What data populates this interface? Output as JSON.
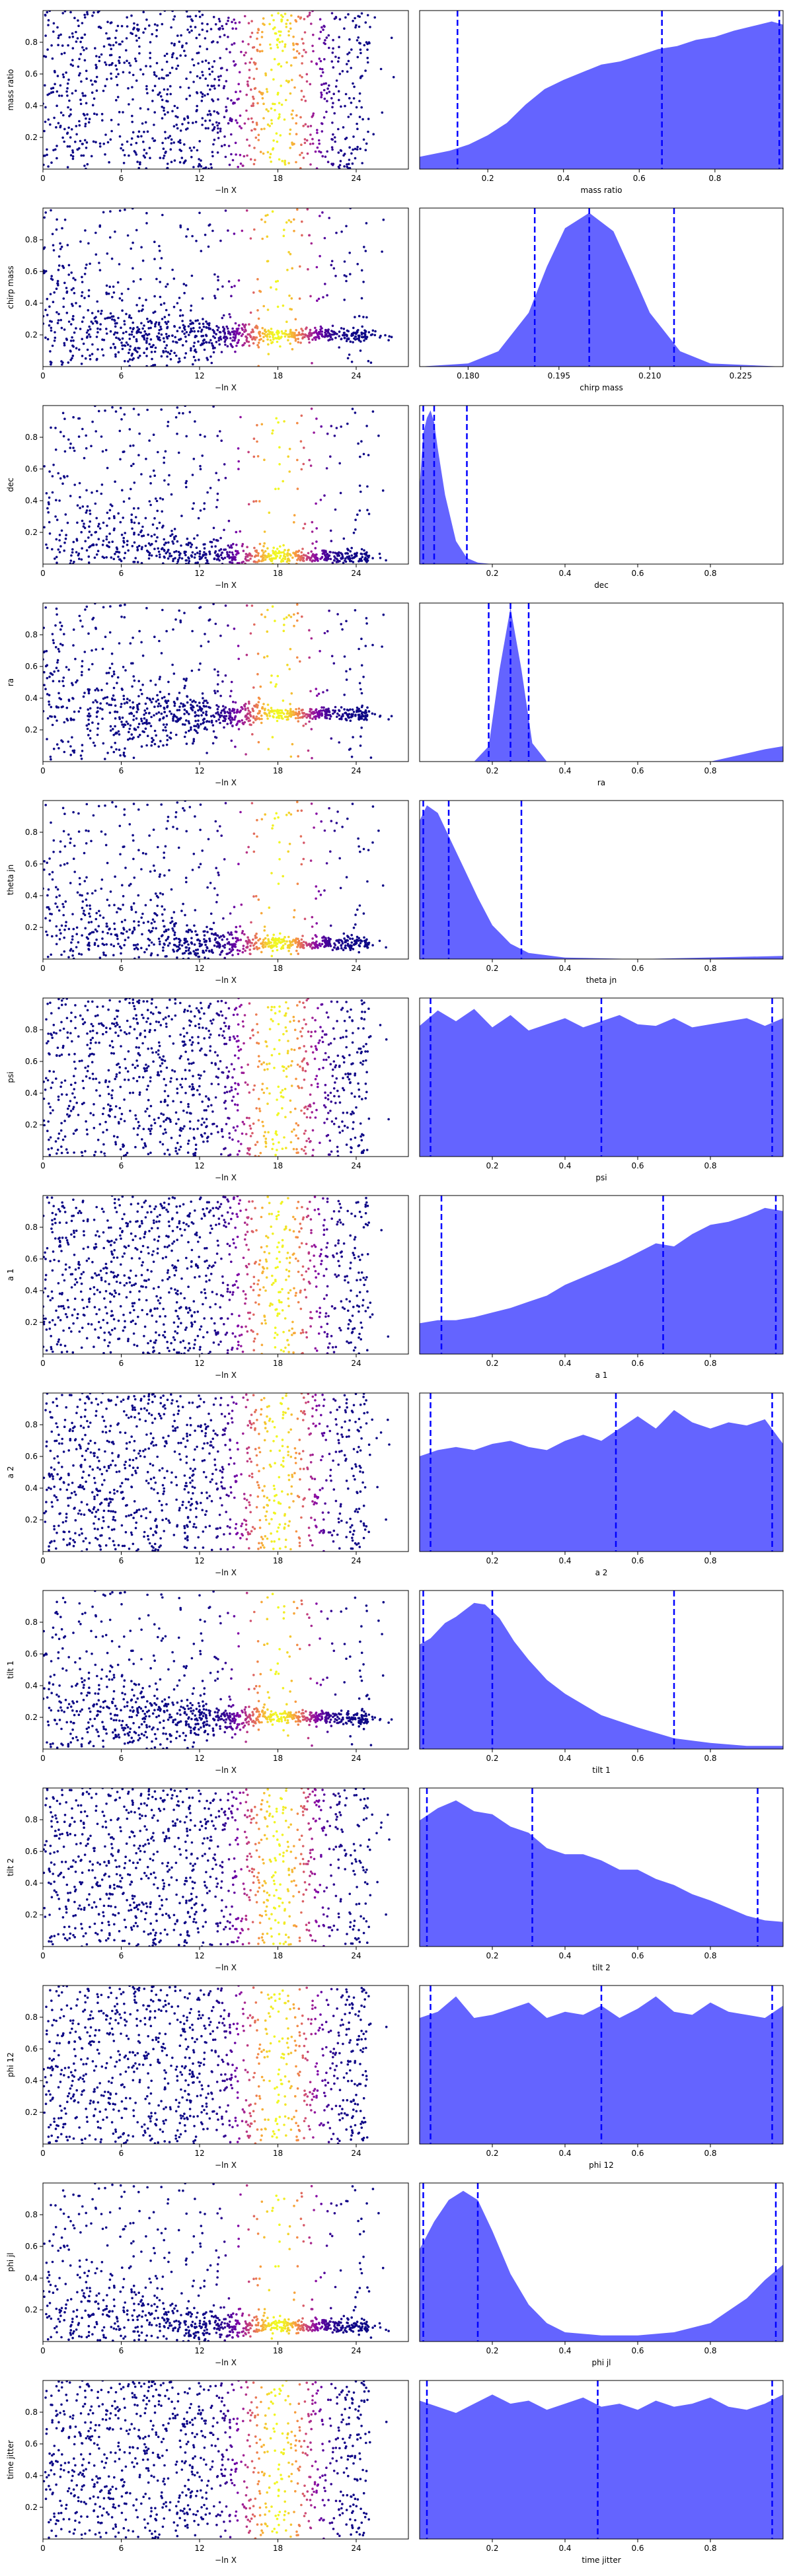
{
  "figure": {
    "panel_columns": [
      "scatter of parameter vs -ln X (colored by weight)",
      "marginal posterior density"
    ],
    "scatter_xlabel": "−ln X",
    "scatter_xlim": [
      0,
      28
    ],
    "scatter_ylim": [
      0,
      1
    ],
    "scatter_xticks": [
      0,
      6,
      12,
      18,
      24
    ],
    "colormap": [
      "#0d0887",
      "#7e03a8",
      "#cc4778",
      "#f89540",
      "#f0f921"
    ],
    "density_fill": "#6464ff",
    "line_color": "#0000ff",
    "grid": false
  },
  "chart_data": [
    {
      "type": "scatter+area",
      "param": "mass ratio",
      "ylabel": "mass ratio",
      "xlabel": "mass ratio",
      "scatter_yticks": [
        "0.2",
        "0.4",
        "0.6",
        "0.8"
      ],
      "dens_xlim": [
        0.02,
        0.98
      ],
      "dens_xticks": [
        0.2,
        0.4,
        0.6,
        0.8
      ],
      "dens_xticklabels": [
        "0.2",
        "0.4",
        "0.6",
        "0.8"
      ],
      "quantiles": [
        0.12,
        0.66,
        0.97
      ],
      "density": {
        "x": [
          0.02,
          0.1,
          0.15,
          0.2,
          0.25,
          0.3,
          0.35,
          0.4,
          0.45,
          0.5,
          0.55,
          0.6,
          0.65,
          0.7,
          0.75,
          0.8,
          0.85,
          0.9,
          0.95,
          0.98
        ],
        "y": [
          0.08,
          0.12,
          0.16,
          0.22,
          0.3,
          0.42,
          0.52,
          0.58,
          0.63,
          0.68,
          0.7,
          0.74,
          0.78,
          0.8,
          0.84,
          0.86,
          0.9,
          0.93,
          0.96,
          0.94
        ]
      },
      "scatter": {
        "ymin": 0.0,
        "ymax": 1.0,
        "xend": 25,
        "yfocus": null
      }
    },
    {
      "type": "scatter+area",
      "param": "chirp mass",
      "ylabel": "chirp mass",
      "xlabel": "chirp mass",
      "scatter_yticks": [
        "0.2",
        "0.4",
        "0.6",
        "0.8"
      ],
      "dens_xlim": [
        0.172,
        0.232
      ],
      "dens_xticks": [
        0.18,
        0.195,
        0.21,
        0.225
      ],
      "dens_xticklabels": [
        "0.180",
        "0.195",
        "0.210",
        "0.225"
      ],
      "quantiles": [
        0.191,
        0.2,
        0.214
      ],
      "density": {
        "x": [
          0.172,
          0.18,
          0.185,
          0.19,
          0.193,
          0.196,
          0.2,
          0.204,
          0.207,
          0.21,
          0.215,
          0.22,
          0.232
        ],
        "y": [
          0,
          0.02,
          0.1,
          0.35,
          0.65,
          0.9,
          1.0,
          0.88,
          0.62,
          0.35,
          0.1,
          0.02,
          0
        ]
      },
      "scatter": {
        "ymin": 0.0,
        "ymax": 1.0,
        "xend": 25,
        "yfocus": 0.2
      }
    },
    {
      "type": "scatter+area",
      "param": "dec",
      "ylabel": "dec",
      "xlabel": "dec",
      "scatter_yticks": [
        "0.2",
        "0.4",
        "0.6",
        "0.8"
      ],
      "dens_xlim": [
        0.0,
        1.0
      ],
      "dens_xticks": [
        0.2,
        0.4,
        0.6,
        0.8
      ],
      "dens_xticklabels": [
        "0.2",
        "0.4",
        "0.6",
        "0.8"
      ],
      "quantiles": [
        0.01,
        0.04,
        0.13
      ],
      "density": {
        "x": [
          0.0,
          0.01,
          0.02,
          0.03,
          0.04,
          0.05,
          0.07,
          0.1,
          0.13,
          0.16,
          0.2,
          0.4,
          0.6,
          0.8,
          1.0
        ],
        "y": [
          0.5,
          0.85,
          0.95,
          1.0,
          0.92,
          0.75,
          0.45,
          0.15,
          0.04,
          0.01,
          0,
          0,
          0,
          0,
          0
        ]
      },
      "scatter": {
        "ymin": 0.0,
        "ymax": 1.0,
        "xend": 25,
        "yfocus": 0.05
      }
    },
    {
      "type": "scatter+area",
      "param": "ra",
      "ylabel": "ra",
      "xlabel": "ra",
      "scatter_yticks": [
        "0.2",
        "0.4",
        "0.6",
        "0.8"
      ],
      "dens_xlim": [
        0.0,
        1.0
      ],
      "dens_xticks": [
        0.2,
        0.4,
        0.6,
        0.8
      ],
      "dens_xticklabels": [
        "0.2",
        "0.4",
        "0.6",
        "0.8"
      ],
      "quantiles": [
        0.19,
        0.25,
        0.3
      ],
      "density": {
        "x": [
          0.0,
          0.15,
          0.19,
          0.22,
          0.25,
          0.28,
          0.31,
          0.35,
          0.5,
          0.8,
          0.95,
          1.0
        ],
        "y": [
          0,
          0,
          0.1,
          0.6,
          1.0,
          0.6,
          0.12,
          0,
          0,
          0,
          0.08,
          0.1
        ]
      },
      "scatter": {
        "ymin": 0.0,
        "ymax": 1.0,
        "xend": 25,
        "yfocus": 0.3
      }
    },
    {
      "type": "scatter+area",
      "param": "theta jn",
      "ylabel": "theta jn",
      "xlabel": "theta jn",
      "scatter_yticks": [
        "0.2",
        "0.4",
        "0.6",
        "0.8"
      ],
      "dens_xlim": [
        0.0,
        1.0
      ],
      "dens_xticks": [
        0.2,
        0.4,
        0.6,
        0.8
      ],
      "dens_xticklabels": [
        "0.2",
        "0.4",
        "0.6",
        "0.8"
      ],
      "quantiles": [
        0.01,
        0.08,
        0.28
      ],
      "density": {
        "x": [
          0.0,
          0.02,
          0.05,
          0.08,
          0.12,
          0.16,
          0.2,
          0.25,
          0.3,
          0.4,
          0.6,
          1.0
        ],
        "y": [
          0.9,
          1.0,
          0.95,
          0.8,
          0.6,
          0.4,
          0.22,
          0.1,
          0.04,
          0.01,
          0,
          0.02
        ]
      },
      "scatter": {
        "ymin": 0.0,
        "ymax": 1.0,
        "xend": 25,
        "yfocus": 0.1
      }
    },
    {
      "type": "scatter+area",
      "param": "psi",
      "ylabel": "psi",
      "xlabel": "psi",
      "scatter_yticks": [
        "0.2",
        "0.4",
        "0.6",
        "0.8"
      ],
      "dens_xlim": [
        0.0,
        1.0
      ],
      "dens_xticks": [
        0.2,
        0.4,
        0.6,
        0.8
      ],
      "dens_xticklabels": [
        "0.2",
        "0.4",
        "0.6",
        "0.8"
      ],
      "quantiles": [
        0.03,
        0.5,
        0.97
      ],
      "density": {
        "x": [
          0.0,
          0.05,
          0.1,
          0.15,
          0.2,
          0.25,
          0.3,
          0.35,
          0.4,
          0.45,
          0.5,
          0.55,
          0.6,
          0.65,
          0.7,
          0.75,
          0.8,
          0.85,
          0.9,
          0.95,
          1.0
        ],
        "y": [
          0.85,
          0.95,
          0.88,
          0.96,
          0.84,
          0.92,
          0.82,
          0.86,
          0.9,
          0.84,
          0.88,
          0.92,
          0.86,
          0.85,
          0.9,
          0.84,
          0.86,
          0.88,
          0.9,
          0.85,
          0.9
        ]
      },
      "scatter": {
        "ymin": 0.0,
        "ymax": 1.0,
        "xend": 25,
        "yfocus": null
      }
    },
    {
      "type": "scatter+area",
      "param": "a 1",
      "ylabel": "a 1",
      "xlabel": "a 1",
      "scatter_yticks": [
        "0.2",
        "0.4",
        "0.6",
        "0.8"
      ],
      "dens_xlim": [
        0.0,
        1.0
      ],
      "dens_xticks": [
        0.2,
        0.4,
        0.6,
        0.8
      ],
      "dens_xticklabels": [
        "0.2",
        "0.4",
        "0.6",
        "0.8"
      ],
      "quantiles": [
        0.06,
        0.67,
        0.98
      ],
      "density": {
        "x": [
          0.0,
          0.05,
          0.1,
          0.15,
          0.2,
          0.25,
          0.3,
          0.35,
          0.4,
          0.45,
          0.5,
          0.55,
          0.6,
          0.65,
          0.7,
          0.75,
          0.8,
          0.85,
          0.9,
          0.95,
          1.0
        ],
        "y": [
          0.2,
          0.22,
          0.22,
          0.24,
          0.27,
          0.3,
          0.34,
          0.38,
          0.45,
          0.5,
          0.55,
          0.6,
          0.66,
          0.72,
          0.7,
          0.78,
          0.84,
          0.86,
          0.9,
          0.95,
          0.93
        ]
      },
      "scatter": {
        "ymin": 0.0,
        "ymax": 1.0,
        "xend": 25,
        "yfocus": null
      }
    },
    {
      "type": "scatter+area",
      "param": "a 2",
      "ylabel": "a 2",
      "xlabel": "a 2",
      "scatter_yticks": [
        "0.2",
        "0.4",
        "0.6",
        "0.8"
      ],
      "dens_xlim": [
        0.0,
        1.0
      ],
      "dens_xticks": [
        0.2,
        0.4,
        0.6,
        0.8
      ],
      "dens_xticklabels": [
        "0.2",
        "0.4",
        "0.6",
        "0.8"
      ],
      "quantiles": [
        0.03,
        0.54,
        0.97
      ],
      "density": {
        "x": [
          0.0,
          0.05,
          0.1,
          0.15,
          0.2,
          0.25,
          0.3,
          0.35,
          0.4,
          0.45,
          0.5,
          0.55,
          0.6,
          0.65,
          0.7,
          0.75,
          0.8,
          0.85,
          0.9,
          0.95,
          1.0
        ],
        "y": [
          0.62,
          0.66,
          0.68,
          0.66,
          0.7,
          0.72,
          0.68,
          0.66,
          0.72,
          0.76,
          0.72,
          0.8,
          0.88,
          0.8,
          0.92,
          0.84,
          0.8,
          0.84,
          0.82,
          0.86,
          0.7
        ]
      },
      "scatter": {
        "ymin": 0.0,
        "ymax": 1.0,
        "xend": 25,
        "yfocus": null
      }
    },
    {
      "type": "scatter+area",
      "param": "tilt 1",
      "ylabel": "tilt 1",
      "xlabel": "tilt 1",
      "scatter_yticks": [
        "0.2",
        "0.4",
        "0.6",
        "0.8"
      ],
      "dens_xlim": [
        0.0,
        1.0
      ],
      "dens_xticks": [
        0.2,
        0.4,
        0.6,
        0.8
      ],
      "dens_xticklabels": [
        "0.2",
        "0.4",
        "0.6",
        "0.8"
      ],
      "quantiles": [
        0.01,
        0.2,
        0.7
      ],
      "density": {
        "x": [
          0.0,
          0.03,
          0.07,
          0.1,
          0.15,
          0.18,
          0.22,
          0.26,
          0.3,
          0.35,
          0.4,
          0.5,
          0.6,
          0.7,
          0.8,
          0.9,
          1.0
        ],
        "y": [
          0.68,
          0.72,
          0.82,
          0.86,
          0.95,
          0.94,
          0.85,
          0.7,
          0.58,
          0.45,
          0.36,
          0.22,
          0.14,
          0.07,
          0.04,
          0.02,
          0.02
        ]
      },
      "scatter": {
        "ymin": 0.0,
        "ymax": 1.0,
        "xend": 25,
        "yfocus": 0.2
      }
    },
    {
      "type": "scatter+area",
      "param": "tilt 2",
      "ylabel": "tilt 2",
      "xlabel": "tilt 2",
      "scatter_yticks": [
        "0.2",
        "0.4",
        "0.6",
        "0.8"
      ],
      "dens_xlim": [
        0.0,
        1.0
      ],
      "dens_xticks": [
        0.2,
        0.4,
        0.6,
        0.8
      ],
      "dens_xticklabels": [
        "0.2",
        "0.4",
        "0.6",
        "0.8"
      ],
      "quantiles": [
        0.02,
        0.31,
        0.93
      ],
      "density": {
        "x": [
          0.0,
          0.05,
          0.1,
          0.15,
          0.2,
          0.25,
          0.3,
          0.35,
          0.4,
          0.45,
          0.5,
          0.55,
          0.6,
          0.65,
          0.7,
          0.75,
          0.8,
          0.85,
          0.9,
          0.95,
          1.0
        ],
        "y": [
          0.82,
          0.9,
          0.95,
          0.88,
          0.86,
          0.78,
          0.74,
          0.64,
          0.6,
          0.6,
          0.56,
          0.5,
          0.5,
          0.44,
          0.4,
          0.34,
          0.3,
          0.25,
          0.2,
          0.17,
          0.16
        ]
      },
      "scatter": {
        "ymin": 0.0,
        "ymax": 1.0,
        "xend": 25,
        "yfocus": null
      }
    },
    {
      "type": "scatter+area",
      "param": "phi 12",
      "ylabel": "phi 12",
      "xlabel": "phi 12",
      "scatter_yticks": [
        "0.2",
        "0.4",
        "0.6",
        "0.8"
      ],
      "dens_xlim": [
        0.0,
        1.0
      ],
      "dens_xticks": [
        0.2,
        0.4,
        0.6,
        0.8
      ],
      "dens_xticklabels": [
        "0.2",
        "0.4",
        "0.6",
        "0.8"
      ],
      "quantiles": [
        0.03,
        0.5,
        0.97
      ],
      "density": {
        "x": [
          0.0,
          0.05,
          0.1,
          0.15,
          0.2,
          0.25,
          0.3,
          0.35,
          0.4,
          0.45,
          0.5,
          0.55,
          0.6,
          0.65,
          0.7,
          0.75,
          0.8,
          0.85,
          0.9,
          0.95,
          1.0
        ],
        "y": [
          0.82,
          0.86,
          0.96,
          0.82,
          0.84,
          0.88,
          0.92,
          0.82,
          0.86,
          0.84,
          0.9,
          0.82,
          0.88,
          0.96,
          0.86,
          0.84,
          0.92,
          0.86,
          0.84,
          0.82,
          0.9
        ]
      },
      "scatter": {
        "ymin": 0.0,
        "ymax": 1.0,
        "xend": 25,
        "yfocus": null
      }
    },
    {
      "type": "scatter+area",
      "param": "phi jl",
      "ylabel": "phi jl",
      "xlabel": "phi jl",
      "scatter_yticks": [
        "0.2",
        "0.4",
        "0.6",
        "0.8"
      ],
      "dens_xlim": [
        0.0,
        1.0
      ],
      "dens_xticks": [
        0.2,
        0.4,
        0.6,
        0.8
      ],
      "dens_xticklabels": [
        "0.2",
        "0.4",
        "0.6",
        "0.8"
      ],
      "quantiles": [
        0.01,
        0.16,
        0.98
      ],
      "density": {
        "x": [
          0.0,
          0.04,
          0.08,
          0.12,
          0.16,
          0.2,
          0.25,
          0.3,
          0.35,
          0.4,
          0.5,
          0.6,
          0.7,
          0.8,
          0.85,
          0.9,
          0.95,
          1.0
        ],
        "y": [
          0.6,
          0.78,
          0.92,
          0.98,
          0.92,
          0.72,
          0.44,
          0.24,
          0.12,
          0.06,
          0.04,
          0.04,
          0.06,
          0.12,
          0.2,
          0.28,
          0.4,
          0.5
        ]
      },
      "scatter": {
        "ymin": 0.0,
        "ymax": 1.0,
        "xend": 25,
        "yfocus": 0.1
      }
    },
    {
      "type": "scatter+area",
      "param": "time jitter",
      "ylabel": "time jitter",
      "xlabel": "time jitter",
      "scatter_yticks": [
        "0.2",
        "0.4",
        "0.6",
        "0.8"
      ],
      "dens_xlim": [
        0.0,
        1.0
      ],
      "dens_xticks": [
        0.2,
        0.4,
        0.6,
        0.8
      ],
      "dens_xticklabels": [
        "0.2",
        "0.4",
        "0.6",
        "0.8"
      ],
      "quantiles": [
        0.02,
        0.49,
        0.97
      ],
      "density": {
        "x": [
          0.0,
          0.05,
          0.1,
          0.15,
          0.2,
          0.25,
          0.3,
          0.35,
          0.4,
          0.45,
          0.5,
          0.55,
          0.6,
          0.65,
          0.7,
          0.75,
          0.8,
          0.85,
          0.9,
          0.95,
          1.0
        ],
        "y": [
          0.9,
          0.86,
          0.82,
          0.88,
          0.94,
          0.88,
          0.9,
          0.84,
          0.88,
          0.92,
          0.86,
          0.88,
          0.84,
          0.9,
          0.86,
          0.88,
          0.92,
          0.86,
          0.84,
          0.88,
          0.94
        ]
      },
      "scatter": {
        "ymin": 0.0,
        "ymax": 1.0,
        "xend": 25,
        "yfocus": null
      }
    }
  ]
}
